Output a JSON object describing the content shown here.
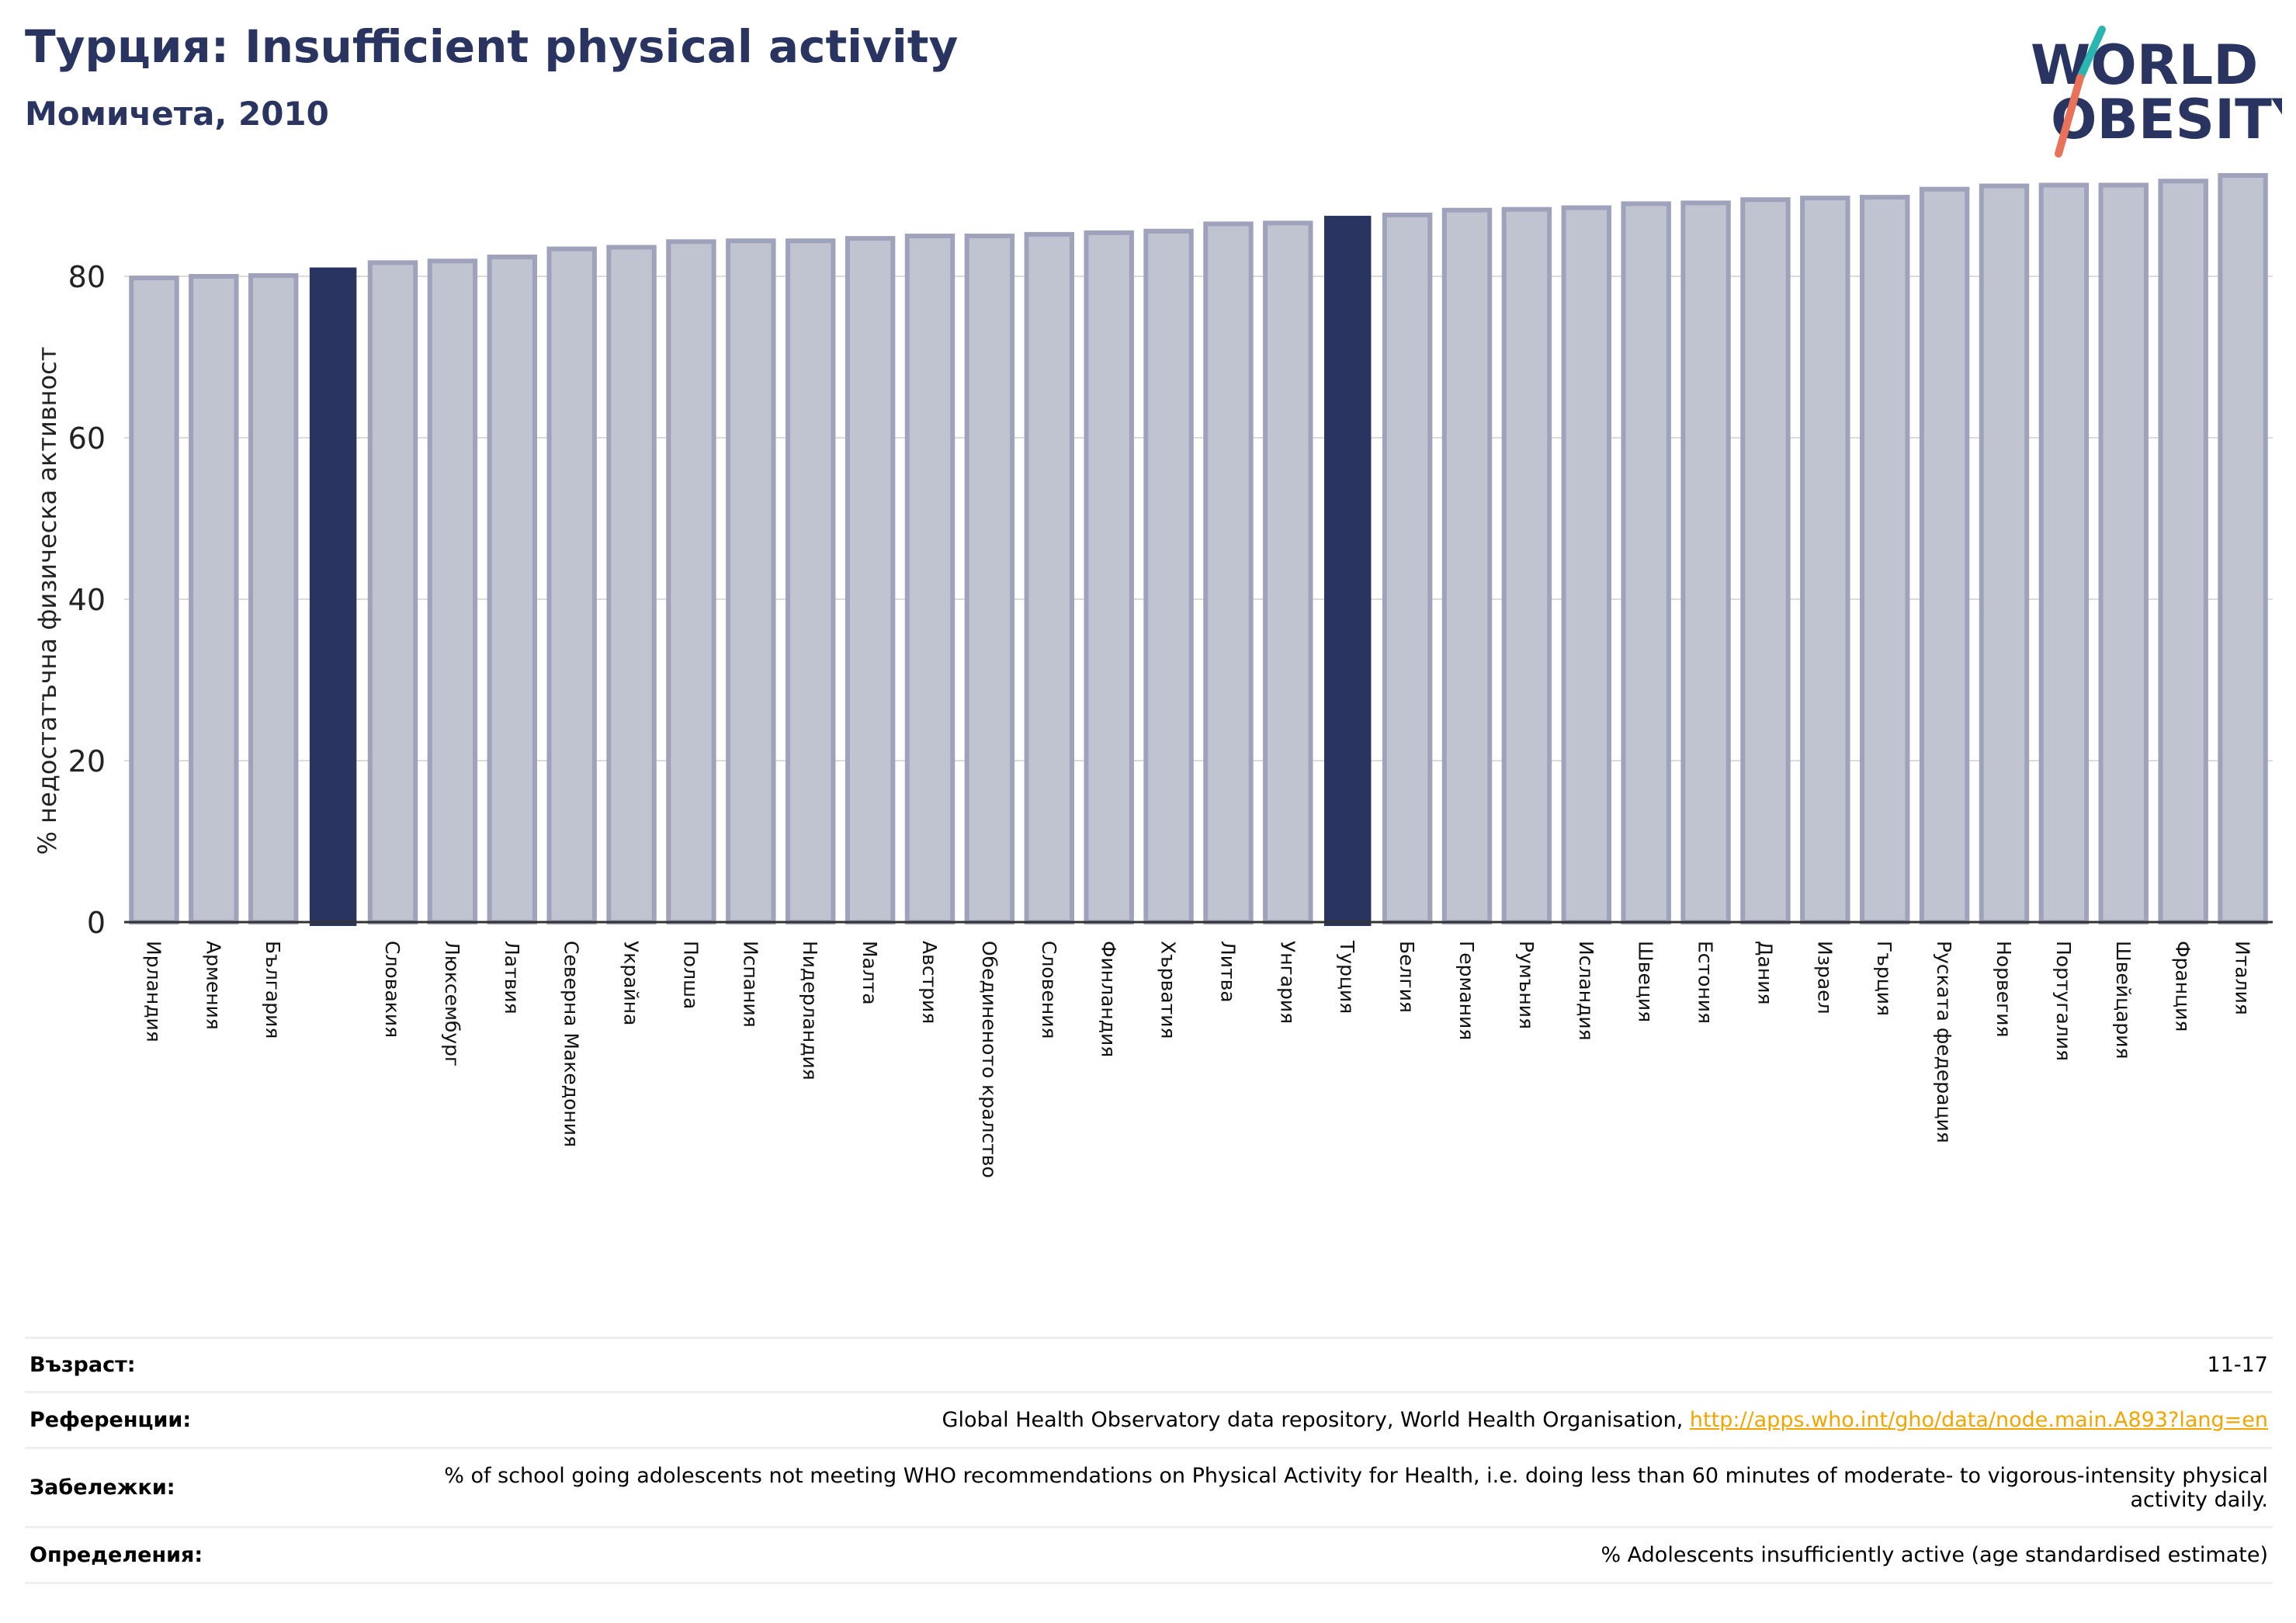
{
  "header": {
    "title": "Турция: Insufficient physical activity",
    "subtitle": "Момичета, 2010"
  },
  "logo": {
    "line1": "WORLD",
    "line2": "OBESITY"
  },
  "colors": {
    "bar": "#c0c3d0",
    "bar_stroke": "#9ea2bb",
    "highlight": "#293460",
    "accent_teal": "#2bb5b0",
    "accent_red": "#e8735a"
  },
  "chart_data": {
    "type": "bar",
    "ylabel": "% недостатъчна физическа активност",
    "ylim": [
      0,
      95
    ],
    "yticks": [
      0,
      20,
      40,
      60,
      80
    ],
    "grid": true,
    "categories": [
      "Ирландия",
      "Армения",
      "България",
      "",
      "Словакия",
      "Люксембург",
      "Латвия",
      "Северна Македония",
      "Украйна",
      "Полша",
      "Испания",
      "Нидерландия",
      "Малта",
      "Австрия",
      "Обединеното кралство",
      "Словения",
      "Финландия",
      "Хърватия",
      "Литва",
      "Унгария",
      "Турция",
      "Белгия",
      "Германия",
      "Румъния",
      "Исландия",
      "Швеция",
      "Естония",
      "Дания",
      "Израел",
      "Гърция",
      "Руската федерация",
      "Норвегия",
      "Португалия",
      "Швейцария",
      "Франция",
      "Италия"
    ],
    "values": [
      79.8,
      80.0,
      80.1,
      81.0,
      81.7,
      81.9,
      82.4,
      83.4,
      83.6,
      84.3,
      84.4,
      84.4,
      84.7,
      85.0,
      85.0,
      85.2,
      85.4,
      85.6,
      86.5,
      86.6,
      87.4,
      87.6,
      88.2,
      88.3,
      88.5,
      89.0,
      89.1,
      89.5,
      89.7,
      89.8,
      90.8,
      91.2,
      91.3,
      91.3,
      91.8,
      92.5
    ],
    "highlighted": [
      3,
      20
    ]
  },
  "meta": {
    "rows": [
      {
        "label": "Възраст:",
        "value": "11-17"
      },
      {
        "label": "Референции:",
        "value": "Global Health Observatory data repository, World Health Organisation, ",
        "link": "http://apps.who.int/gho/data/node.main.A893?lang=en"
      },
      {
        "label": "Забележки:",
        "value": "% of school going adolescents not meeting WHO recommendations on Physical Activity for Health, i.e. doing less than 60 minutes of moderate- to vigorous-intensity physical activity daily."
      },
      {
        "label": "Определения:",
        "value": "% Adolescents insufficiently active (age standardised estimate)"
      }
    ]
  }
}
